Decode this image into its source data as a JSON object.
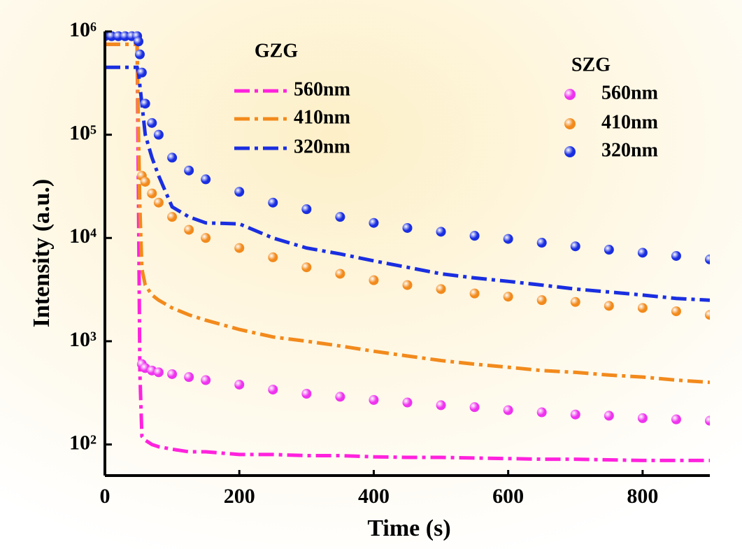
{
  "chart_data": {
    "type": "line",
    "x_label": "Time (s)",
    "y_label": "Intensity (a.u.)",
    "log_y": true,
    "xlim": [
      0,
      900
    ],
    "xticks": [
      0,
      200,
      400,
      600,
      800
    ],
    "ylim": [
      50,
      1000000
    ],
    "yticks": [
      {
        "value": 100,
        "label": "10²"
      },
      {
        "value": 1000,
        "label": "10³"
      },
      {
        "value": 10000,
        "label": "10⁴"
      },
      {
        "value": 100000,
        "label": "10⁵"
      },
      {
        "value": 1000000,
        "label": "10⁶"
      }
    ],
    "x": [
      0,
      10,
      20,
      30,
      40,
      48,
      50,
      52,
      55,
      60,
      70,
      80,
      100,
      125,
      150,
      200,
      250,
      300,
      350,
      400,
      450,
      500,
      550,
      600,
      650,
      700,
      750,
      800,
      850,
      900
    ],
    "groups": [
      {
        "title": "GZG",
        "mode": "dashdot",
        "series": [
          {
            "name": "560nm",
            "color": "#ff22dd",
            "values": [
              750000,
              750000,
              750000,
              750000,
              750000,
              750000,
              20000,
              500,
              120,
              110,
              100,
              95,
              90,
              85,
              85,
              80,
              80,
              78,
              78,
              76,
              75,
              75,
              74,
              73,
              72,
              72,
              71,
              70,
              70,
              70
            ]
          },
          {
            "name": "410nm",
            "color": "#f28a1c",
            "values": [
              750000,
              750000,
              750000,
              750000,
              750000,
              750000,
              100000,
              20000,
              5000,
              3500,
              2800,
              2500,
              2100,
              1800,
              1600,
              1300,
              1100,
              1000,
              900,
              800,
              720,
              650,
              600,
              560,
              520,
              500,
              470,
              450,
              420,
              400
            ]
          },
          {
            "name": "320nm",
            "color": "#1a2ee0",
            "values": [
              450000,
              450000,
              450000,
              450000,
              450000,
              450000,
              400000,
              300000,
              200000,
              100000,
              60000,
              40000,
              20000,
              16000,
              14000,
              13700,
              10000,
              8000,
              7000,
              6000,
              5200,
              4500,
              4100,
              3800,
              3500,
              3200,
              3000,
              2800,
              2600,
              2500
            ]
          }
        ]
      },
      {
        "title": "SZG",
        "mode": "markers",
        "series": [
          {
            "name": "560nm",
            "color": "#ee33ee",
            "values": [
              null,
              null,
              null,
              null,
              null,
              null,
              null,
              null,
              600,
              550,
              520,
              500,
              480,
              450,
              420,
              380,
              340,
              310,
              290,
              270,
              255,
              240,
              230,
              215,
              205,
              195,
              190,
              180,
              175,
              170
            ]
          },
          {
            "name": "410nm",
            "color": "#f28a1c",
            "values": [
              null,
              null,
              null,
              null,
              null,
              null,
              null,
              null,
              40000,
              35000,
              27000,
              22000,
              16000,
              12000,
              10000,
              8000,
              6500,
              5200,
              4500,
              3900,
              3500,
              3200,
              2900,
              2700,
              2500,
              2400,
              2200,
              2100,
              1950,
              1800
            ]
          },
          {
            "name": "320nm",
            "color": "#1a2ee0",
            "values": [
              900000,
              900000,
              900000,
              900000,
              900000,
              900000,
              800000,
              600000,
              400000,
              200000,
              130000,
              100000,
              60000,
              45000,
              37000,
              28000,
              22000,
              19000,
              16000,
              14000,
              12500,
              11500,
              10500,
              9800,
              9000,
              8300,
              7700,
              7200,
              6700,
              6200
            ]
          }
        ]
      }
    ]
  }
}
